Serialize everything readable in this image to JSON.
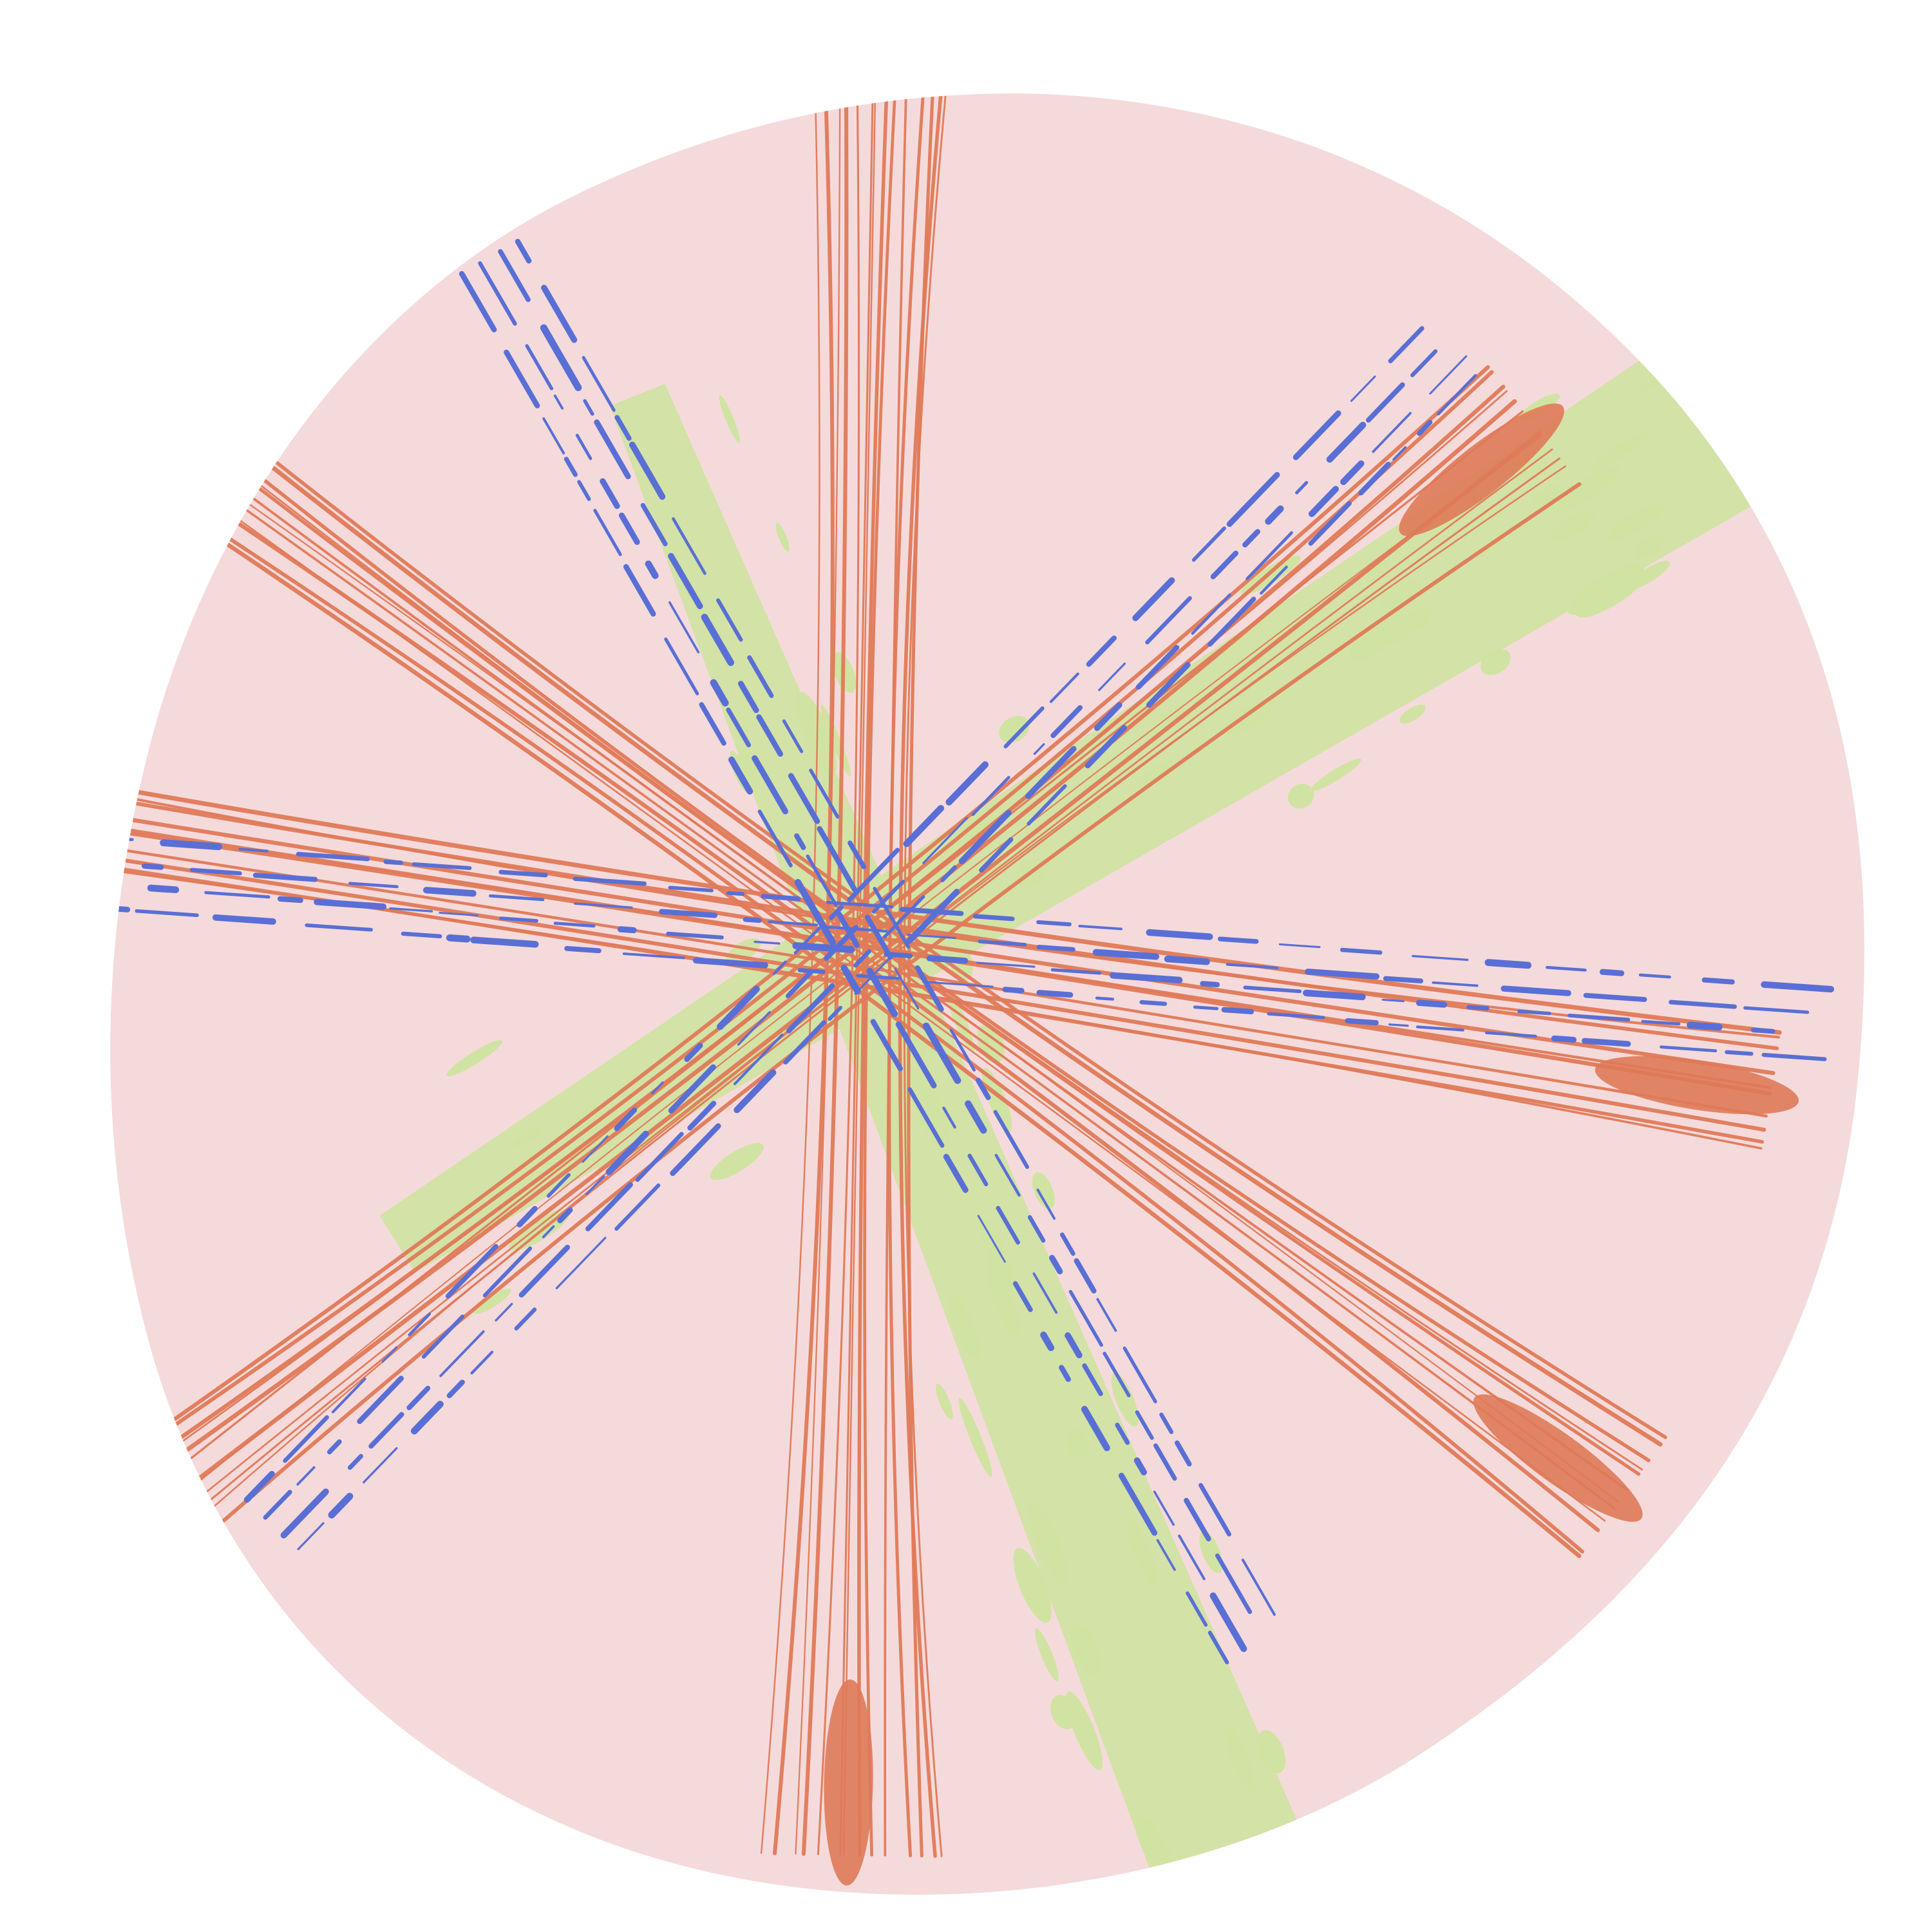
{
  "artwork": {
    "background_color": "#ffffff",
    "blob_color": "#f5dadb",
    "palette": {
      "green": "#d1e3a3",
      "orange": "#df7a59",
      "blue": "#596fd5"
    },
    "strokes": [
      {
        "kind": "green-band",
        "color_key": "green",
        "angle_deg": -32,
        "length": 1550,
        "thickness": 260
      },
      {
        "kind": "green-band",
        "color_key": "green",
        "angle_deg": 68,
        "length": 1700,
        "thickness": 230
      },
      {
        "kind": "orange-bundle",
        "color_key": "orange",
        "angle_deg": 91,
        "length": 2800,
        "lines": 14
      },
      {
        "kind": "orange-bundle",
        "color_key": "orange",
        "angle_deg": -38,
        "length": 2650,
        "lines": 12
      },
      {
        "kind": "orange-bundle",
        "color_key": "orange",
        "angle_deg": 36,
        "length": 2900,
        "lines": 12
      },
      {
        "kind": "orange-bundle",
        "color_key": "orange",
        "angle_deg": 9,
        "length": 2850,
        "lines": 10
      },
      {
        "kind": "blue-dashes",
        "color_key": "blue",
        "angle_deg": 60,
        "length": 2450,
        "lines": 4
      },
      {
        "kind": "blue-dashes",
        "color_key": "blue",
        "angle_deg": -46,
        "length": 2550,
        "lines": 4
      },
      {
        "kind": "blue-dashes",
        "color_key": "blue",
        "angle_deg": 4,
        "length": 2900,
        "lines": 4
      }
    ]
  }
}
